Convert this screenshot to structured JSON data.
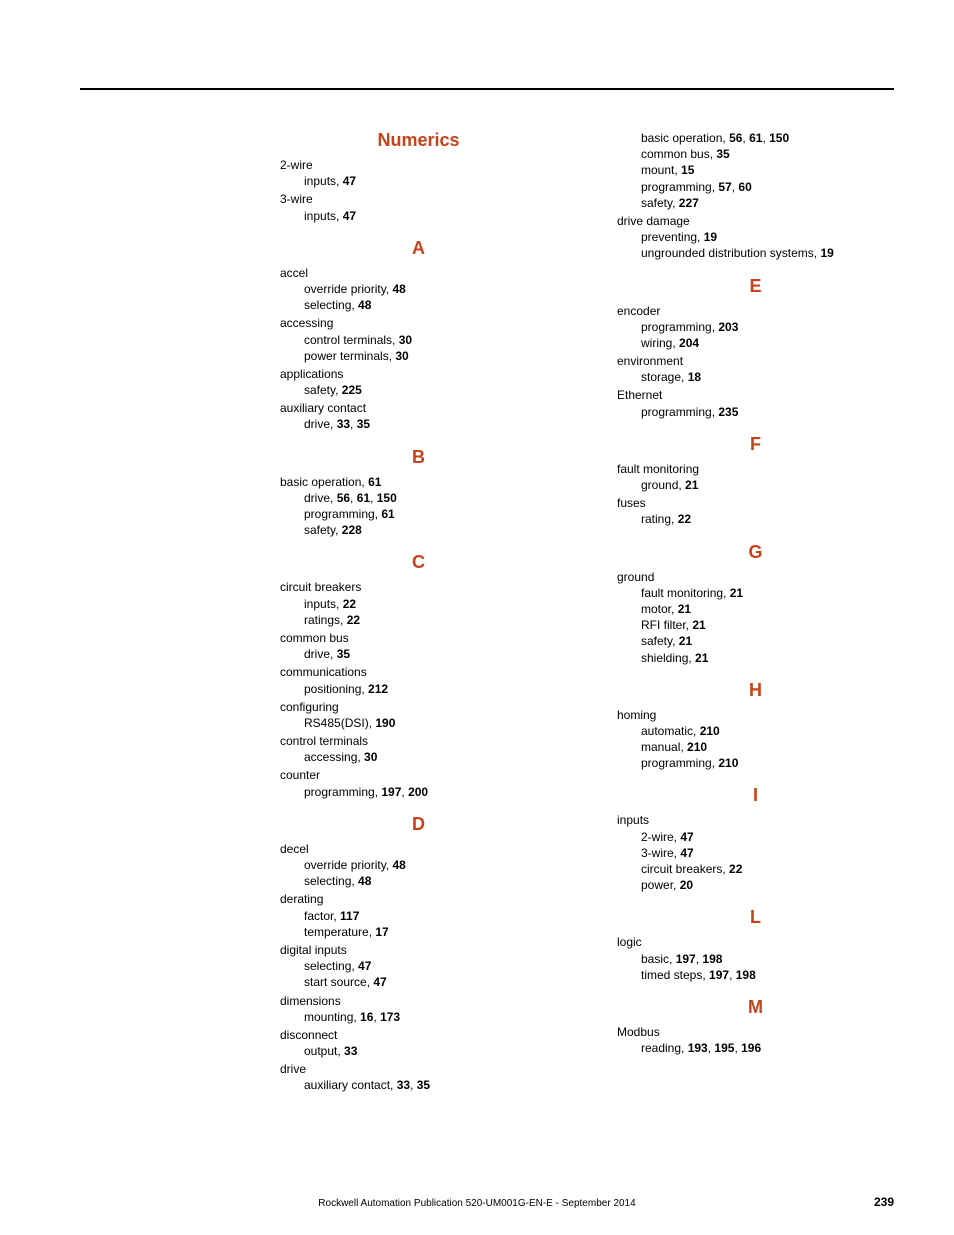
{
  "footer": {
    "publication": "Rockwell Automation Publication 520-UM001G-EN-E - September 2014",
    "page_number": "239"
  },
  "left_column": [
    {
      "type": "header",
      "text": "Numerics"
    },
    {
      "type": "term",
      "text": "2-wire"
    },
    {
      "type": "sub",
      "label": "inputs, ",
      "page": "47"
    },
    {
      "type": "term",
      "text": "3-wire"
    },
    {
      "type": "sub",
      "label": "inputs, ",
      "page": "47"
    },
    {
      "type": "header",
      "text": "A"
    },
    {
      "type": "term",
      "text": "accel"
    },
    {
      "type": "sub",
      "label": "override priority, ",
      "page": "48"
    },
    {
      "type": "sub",
      "label": "selecting, ",
      "page": "48"
    },
    {
      "type": "term",
      "text": "accessing"
    },
    {
      "type": "sub",
      "label": "control terminals, ",
      "page": "30"
    },
    {
      "type": "sub",
      "label": "power terminals, ",
      "page": "30"
    },
    {
      "type": "term",
      "text": "applications"
    },
    {
      "type": "sub",
      "label": "safety, ",
      "page": "225"
    },
    {
      "type": "term",
      "text": "auxiliary contact"
    },
    {
      "type": "sub",
      "label": "drive, ",
      "page": "33",
      "extra": ", ",
      "page2": "35"
    },
    {
      "type": "header",
      "text": "B"
    },
    {
      "type": "term_page",
      "label": "basic operation, ",
      "page": "61"
    },
    {
      "type": "sub",
      "label": "drive, ",
      "page": "56",
      "extra": ", ",
      "page2": "61",
      "extra2": ", ",
      "page3": "150"
    },
    {
      "type": "sub",
      "label": "programming, ",
      "page": "61"
    },
    {
      "type": "sub",
      "label": "safety, ",
      "page": "228"
    },
    {
      "type": "header",
      "text": "C"
    },
    {
      "type": "term",
      "text": "circuit breakers"
    },
    {
      "type": "sub",
      "label": "inputs, ",
      "page": "22"
    },
    {
      "type": "sub",
      "label": "ratings, ",
      "page": "22"
    },
    {
      "type": "term",
      "text": "common bus"
    },
    {
      "type": "sub",
      "label": "drive, ",
      "page": "35"
    },
    {
      "type": "term",
      "text": "communications"
    },
    {
      "type": "sub",
      "label": "positioning, ",
      "page": "212"
    },
    {
      "type": "term",
      "text": "configuring"
    },
    {
      "type": "sub",
      "label": "RS485(DSI), ",
      "page": "190"
    },
    {
      "type": "term",
      "text": "control terminals"
    },
    {
      "type": "sub",
      "label": "accessing, ",
      "page": "30"
    },
    {
      "type": "term",
      "text": "counter"
    },
    {
      "type": "sub",
      "label": "programming, ",
      "page": "197",
      "extra": ", ",
      "page2": "200"
    },
    {
      "type": "header",
      "text": "D"
    },
    {
      "type": "term",
      "text": "decel"
    },
    {
      "type": "sub",
      "label": "override priority, ",
      "page": "48"
    },
    {
      "type": "sub",
      "label": "selecting, ",
      "page": "48"
    },
    {
      "type": "term",
      "text": "derating"
    },
    {
      "type": "sub",
      "label": "factor, ",
      "page": "117"
    },
    {
      "type": "sub",
      "label": "temperature, ",
      "page": "17"
    },
    {
      "type": "term",
      "text": "digital inputs"
    },
    {
      "type": "sub",
      "label": "selecting, ",
      "page": "47"
    },
    {
      "type": "sub",
      "label": "start source, ",
      "page": "47"
    },
    {
      "type": "term",
      "text": "dimensions"
    },
    {
      "type": "sub",
      "label": "mounting, ",
      "page": "16",
      "extra": ", ",
      "page2": "173"
    },
    {
      "type": "term",
      "text": "disconnect"
    },
    {
      "type": "sub",
      "label": "output, ",
      "page": "33"
    },
    {
      "type": "term",
      "text": "drive"
    },
    {
      "type": "sub",
      "label": "auxiliary contact, ",
      "page": "33",
      "extra": ", ",
      "page2": "35"
    }
  ],
  "right_column": [
    {
      "type": "sub",
      "label": "basic operation, ",
      "page": "56",
      "extra": ", ",
      "page2": "61",
      "extra2": ", ",
      "page3": "150"
    },
    {
      "type": "sub",
      "label": "common bus, ",
      "page": "35"
    },
    {
      "type": "sub",
      "label": "mount, ",
      "page": "15"
    },
    {
      "type": "sub",
      "label": "programming, ",
      "page": "57",
      "extra": ", ",
      "page2": "60"
    },
    {
      "type": "sub",
      "label": "safety, ",
      "page": "227"
    },
    {
      "type": "term",
      "text": "drive damage"
    },
    {
      "type": "sub",
      "label": "preventing, ",
      "page": "19"
    },
    {
      "type": "sub",
      "label": "ungrounded distribution systems, ",
      "page": "19"
    },
    {
      "type": "header",
      "text": "E"
    },
    {
      "type": "term",
      "text": "encoder"
    },
    {
      "type": "sub",
      "label": "programming, ",
      "page": "203"
    },
    {
      "type": "sub",
      "label": "wiring, ",
      "page": "204"
    },
    {
      "type": "term",
      "text": "environment"
    },
    {
      "type": "sub",
      "label": "storage, ",
      "page": "18"
    },
    {
      "type": "term",
      "text": "Ethernet"
    },
    {
      "type": "sub",
      "label": "programming, ",
      "page": "235"
    },
    {
      "type": "header",
      "text": "F"
    },
    {
      "type": "term",
      "text": "fault monitoring"
    },
    {
      "type": "sub",
      "label": "ground, ",
      "page": "21"
    },
    {
      "type": "term",
      "text": "fuses"
    },
    {
      "type": "sub",
      "label": "rating, ",
      "page": "22"
    },
    {
      "type": "header",
      "text": "G"
    },
    {
      "type": "term",
      "text": "ground"
    },
    {
      "type": "sub",
      "label": "fault monitoring, ",
      "page": "21"
    },
    {
      "type": "sub",
      "label": "motor, ",
      "page": "21"
    },
    {
      "type": "sub",
      "label": "RFI filter, ",
      "page": "21"
    },
    {
      "type": "sub",
      "label": "safety, ",
      "page": "21"
    },
    {
      "type": "sub",
      "label": "shielding, ",
      "page": "21"
    },
    {
      "type": "header",
      "text": "H"
    },
    {
      "type": "term",
      "text": "homing"
    },
    {
      "type": "sub",
      "label": "automatic, ",
      "page": "210"
    },
    {
      "type": "sub",
      "label": "manual, ",
      "page": "210"
    },
    {
      "type": "sub",
      "label": "programming, ",
      "page": "210"
    },
    {
      "type": "header",
      "text": "I"
    },
    {
      "type": "term",
      "text": "inputs"
    },
    {
      "type": "sub",
      "label": "2-wire, ",
      "page": "47"
    },
    {
      "type": "sub",
      "label": "3-wire, ",
      "page": "47"
    },
    {
      "type": "sub",
      "label": "circuit breakers, ",
      "page": "22"
    },
    {
      "type": "sub",
      "label": "power, ",
      "page": "20"
    },
    {
      "type": "header",
      "text": "L"
    },
    {
      "type": "term",
      "text": "logic"
    },
    {
      "type": "sub",
      "label": "basic, ",
      "page": "197",
      "extra": ", ",
      "page2": "198"
    },
    {
      "type": "sub",
      "label": "timed steps, ",
      "page": "197",
      "extra": ", ",
      "page2": "198"
    },
    {
      "type": "header",
      "text": "M"
    },
    {
      "type": "term",
      "text": "Modbus"
    },
    {
      "type": "sub",
      "label": "reading, ",
      "page": "193",
      "extra": ", ",
      "page2": "195",
      "extra2": ", ",
      "page3": "196"
    }
  ]
}
